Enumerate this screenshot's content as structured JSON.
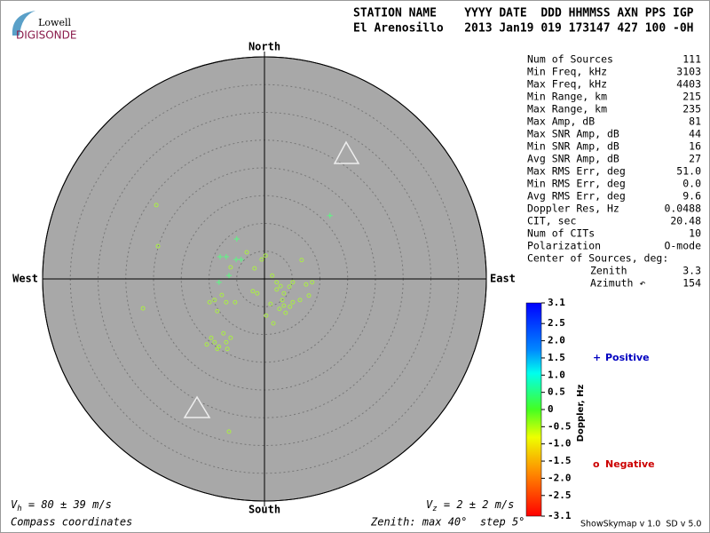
{
  "chart_data": {
    "type": "skymap",
    "logo": {
      "top": "Lowell",
      "bottom": "DIGISONDE"
    },
    "header": [
      "STATION NAME    YYYY DATE  DDD HHMMSS AXN PPS IGP",
      "El Arenosillo   2013 Jan19 019 173147 427 100 -0H"
    ],
    "directions": {
      "north": "North",
      "south": "South",
      "east": "East",
      "west": "West"
    },
    "rlim": [
      0,
      40
    ],
    "rticks": [
      5,
      10,
      15,
      20,
      25,
      30,
      35,
      40
    ],
    "stats": [
      [
        "Num of Sources",
        "111"
      ],
      [
        "Min Freq, kHz",
        "3103"
      ],
      [
        "Max Freq, kHz",
        "4403"
      ],
      [
        "Min Range, km",
        "215"
      ],
      [
        "Max Range, km",
        "235"
      ],
      [
        "Max Amp, dB",
        "81"
      ],
      [
        "Max SNR Amp, dB",
        "44"
      ],
      [
        "Min SNR Amp, dB",
        "16"
      ],
      [
        "Avg SNR Amp, dB",
        "27"
      ],
      [
        "Max RMS Err, deg",
        "51.0"
      ],
      [
        "Min RMS Err, deg",
        "0.0"
      ],
      [
        "Avg RMS Err, deg",
        "9.6"
      ],
      [
        "Doppler Res, Hz",
        "0.0488"
      ],
      [
        "CIT, sec",
        "20.48"
      ],
      [
        "Num of CITs",
        "10"
      ],
      [
        "Polarization",
        "O-mode"
      ]
    ],
    "center_title": "Center of Sources, deg:",
    "center": [
      [
        "Zenith",
        "3.3"
      ],
      [
        "Azimuth ↶",
        "154"
      ]
    ],
    "colorbar": {
      "label": "Doppler, Hz",
      "lim": [
        -3.1,
        3.1
      ],
      "ticks": [
        3.1,
        2.5,
        {
          "value": 2,
          "label": "2.0"
        },
        1.5,
        {
          "value": 1,
          "label": "1.0"
        },
        0.5,
        0,
        -0.5,
        {
          "value": -1,
          "label": "-1.0"
        },
        -1.5,
        {
          "value": -2,
          "label": "-2.0"
        },
        -2.5,
        -3.1
      ]
    },
    "series": [
      {
        "name": "Positive",
        "symbol": "+",
        "color": "#66ee88",
        "legend_color": "#0000c0",
        "x": [
          11.8,
          -5.0,
          -8.0,
          -6.9,
          -5.1,
          -4.2,
          -6.4,
          -8.2
        ],
        "y": [
          11.4,
          7.2,
          4.0,
          4.0,
          3.5,
          3.5,
          0.6,
          -0.6
        ]
      },
      {
        "name": "Negative",
        "symbol": "o",
        "color": "#aaee44",
        "legend_color": "#cc0000",
        "x": [
          -19.5,
          -19.2,
          -21.9,
          -3.2,
          -1.8,
          -0.5,
          0.2,
          1.4,
          2.2,
          2.9,
          3.5,
          4.5,
          5.1,
          6.7,
          7.5,
          8.6,
          8.0,
          6.4,
          5.1,
          3.5,
          2.7,
          1.1,
          0.3,
          1.6,
          -1.3,
          -2.1,
          -7.7,
          -6.9,
          -9.0,
          -9.9,
          -8.5,
          -9.6,
          -9.0,
          -8.2,
          -6.9,
          -6.1,
          -7.4,
          -10.4,
          -8.5,
          -6.7,
          -6.4,
          -6.1,
          -5.3,
          4.6,
          3.8,
          2.2,
          3.2
        ],
        "y": [
          13.3,
          5.9,
          -5.3,
          4.8,
          1.9,
          3.5,
          4.2,
          0.6,
          -0.6,
          -1.3,
          -2.6,
          -1.4,
          -0.6,
          3.4,
          -1.0,
          -0.6,
          -3.0,
          -3.8,
          -4.2,
          -4.8,
          -5.4,
          -4.5,
          -6.6,
          -8.0,
          -2.6,
          -2.2,
          -2.9,
          -4.2,
          -3.8,
          -4.2,
          -5.8,
          -10.6,
          -11.4,
          -12.2,
          -11.4,
          -10.6,
          -9.8,
          -11.8,
          -12.6,
          -12.6,
          -27.5,
          2.1,
          -4.2,
          -5.0,
          -6.1,
          -1.9,
          -3.8
        ]
      }
    ],
    "vh": {
      "symbol": "V",
      "sub": "h",
      "text": " = 80 ± 39 m/s"
    },
    "vz": {
      "symbol": "V",
      "sub": "z",
      "text": " = 2 ± 2 m/s"
    },
    "footer_left": "Compass coordinates",
    "footer_zenith": "Zenith: max 40°  step 5°",
    "footer_version": "ShowSkymap v 1.0  SD v 5.0"
  }
}
